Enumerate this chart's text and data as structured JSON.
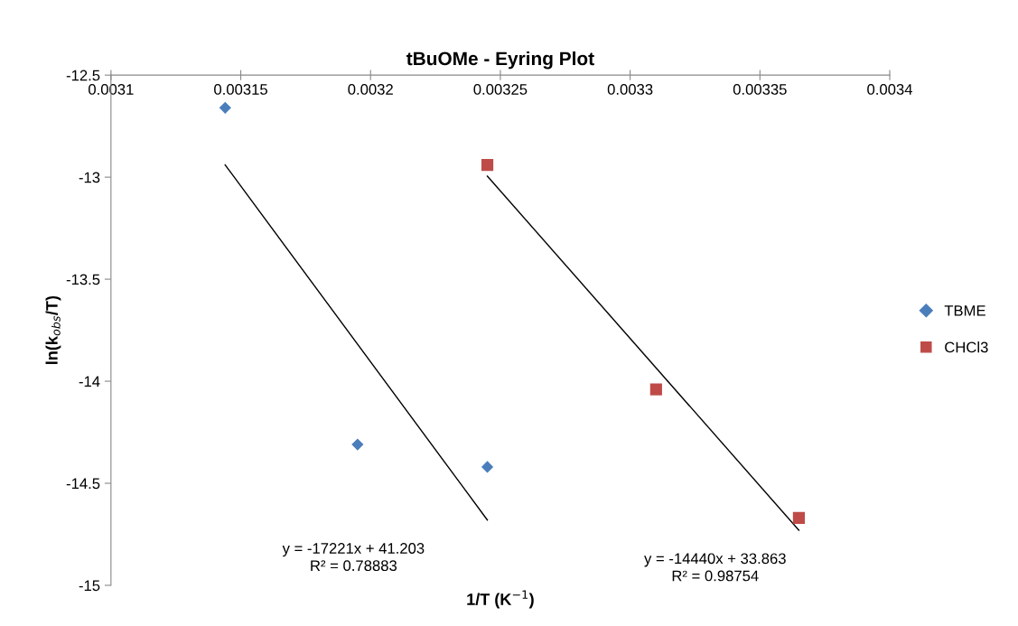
{
  "chart_data": {
    "type": "scatter",
    "title": "tBuOMe - Eyring Plot",
    "xlabel": "1/T (K$^{−1}$)",
    "ylabel": "ln(k$_{obs}$/T)",
    "xlim": [
      0.0031,
      0.0034
    ],
    "xticks": [
      0.0031,
      0.00315,
      0.0032,
      0.00325,
      0.0033,
      0.00335,
      0.0034
    ],
    "ylim": [
      -15,
      -12.5
    ],
    "yticks": [
      -15,
      -14.5,
      -14,
      -13.5,
      -13,
      -12.5
    ],
    "grid": false,
    "legend": "right",
    "series": [
      {
        "name": "TBME",
        "color": "#4a7ebb",
        "marker": "diamond",
        "x": [
          0.003144,
          0.003195,
          0.003245
        ],
        "values": [
          -12.66,
          -14.31,
          -14.42
        ]
      },
      {
        "name": "CHCl3",
        "color": "#be4b48",
        "marker": "square",
        "x": [
          0.003245,
          0.00331,
          0.003365
        ],
        "values": [
          -12.94,
          -14.04,
          -14.67
        ]
      },
      {
        "type": "line",
        "color": "#000000",
        "marker": "none",
        "x": [
          0.003144,
          0.003245
        ],
        "values": [
          -12.94,
          -14.68
        ]
      },
      {
        "type": "line",
        "color": "#000000",
        "marker": "none",
        "x": [
          0.003245,
          0.003365
        ],
        "values": [
          -12.995,
          -14.73
        ]
      }
    ],
    "annotations": [
      "y = -17221x + 41.203\nR² = 0.78883",
      "y = -14440x + 33.863\nR² = 0.98754"
    ]
  }
}
